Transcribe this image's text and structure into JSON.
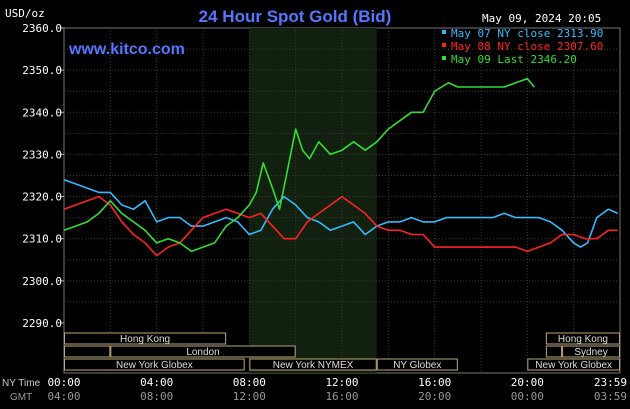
{
  "header": {
    "title": "24 Hour Spot Gold (Bid)",
    "datetime": "May 09, 2024 20:05",
    "y_unit": "USD/oz",
    "site": "www.kitco.com"
  },
  "legend": [
    {
      "text": "May 07 NY close 2313.90",
      "color": "#33bbff"
    },
    {
      "text": "May 08 NY close 2307.60",
      "color": "#ff2222"
    },
    {
      "text": "May 09 Last 2346.20",
      "color": "#33dd33"
    }
  ],
  "market_sessions": {
    "rows": [
      [
        {
          "label": "Hong Kong",
          "start": 0.0,
          "end": 7.0
        },
        {
          "label": "Hong Kong",
          "start": 20.8,
          "end": 24.0
        }
      ],
      [
        {
          "label": "",
          "start": 0.0,
          "end": 2.0
        },
        {
          "label": "London",
          "start": 2.0,
          "end": 10.0
        },
        {
          "label": "",
          "start": 20.8,
          "end": 21.5
        },
        {
          "label": "Sydney",
          "start": 21.5,
          "end": 24.0
        }
      ],
      [
        {
          "label": "New York Globex",
          "start": 0.0,
          "end": 7.8
        },
        {
          "label": "New York NYMEX",
          "start": 8.0,
          "end": 13.5
        },
        {
          "label": "NY Globex",
          "start": 13.5,
          "end": 17.0
        },
        {
          "label": "New York Globex",
          "start": 20.0,
          "end": 24.0
        }
      ]
    ]
  },
  "time_axis": {
    "row1_label": "NY Time",
    "row2_label": "GMT",
    "ny_ticks": [
      "00:00",
      "04:00",
      "08:00",
      "12:00",
      "16:00",
      "20:00",
      "23:59"
    ],
    "gmt_ticks": [
      "04:00",
      "08:00",
      "12:00",
      "16:00",
      "20:00",
      "00:00",
      "03:59"
    ]
  },
  "chart_data": {
    "type": "line",
    "title": "24 Hour Spot Gold (Bid)",
    "ylabel": "USD/oz",
    "xlabel": "NY Time",
    "xlim": [
      0,
      24
    ],
    "ylim": [
      2290,
      2360
    ],
    "yticks": [
      2360,
      2350,
      2340,
      2330,
      2320,
      2310,
      2300,
      2290
    ],
    "ytick_labels": [
      "2360.0",
      "2350.0",
      "2340.0",
      "2330.0",
      "2320.0",
      "2310.0",
      "2300.0",
      "2290.0"
    ],
    "grid": true,
    "legend_position": "top-right",
    "shaded_region_hours": [
      8.0,
      13.5
    ],
    "series": [
      {
        "name": "May 07 NY close 2313.90",
        "color": "#33bbff",
        "x": [
          0,
          0.5,
          1.0,
          1.5,
          2.0,
          2.5,
          3.0,
          3.5,
          4.0,
          4.5,
          5.0,
          5.5,
          6.0,
          6.5,
          7.0,
          7.5,
          8.0,
          8.5,
          9.0,
          9.5,
          10.0,
          10.5,
          11.0,
          11.5,
          12.0,
          12.5,
          13.0,
          13.5,
          14.0,
          14.5,
          15.0,
          15.5,
          16.0,
          16.5,
          17.0,
          17.5,
          18.0,
          18.5,
          19.0,
          19.5,
          20.0,
          20.5,
          21.0,
          21.5,
          22.0,
          22.3,
          22.6,
          23.0,
          23.5,
          23.9
        ],
        "values": [
          2324,
          2323,
          2322,
          2321,
          2321,
          2318,
          2317,
          2319,
          2314,
          2315,
          2315,
          2313,
          2313,
          2314,
          2315,
          2314,
          2311,
          2312,
          2317,
          2320,
          2318,
          2315,
          2314,
          2312,
          2313,
          2314,
          2311,
          2313,
          2314,
          2314,
          2315,
          2314,
          2314,
          2315,
          2315,
          2315,
          2315,
          2315,
          2316,
          2315,
          2315,
          2315,
          2314,
          2312,
          2309,
          2308,
          2309,
          2315,
          2317,
          2316
        ]
      },
      {
        "name": "May 08 NY close 2307.60",
        "color": "#ff2222",
        "x": [
          0,
          0.5,
          1.0,
          1.5,
          2.0,
          2.5,
          3.0,
          3.5,
          4.0,
          4.5,
          5.0,
          5.5,
          6.0,
          6.5,
          7.0,
          7.5,
          8.0,
          8.5,
          9.0,
          9.5,
          10.0,
          10.5,
          11.0,
          11.5,
          12.0,
          12.5,
          13.0,
          13.5,
          14.0,
          14.5,
          15.0,
          15.5,
          16.0,
          16.5,
          17.0,
          17.5,
          18.0,
          18.5,
          19.0,
          19.5,
          20.0,
          20.5,
          21.0,
          21.5,
          22.0,
          22.5,
          23.0,
          23.5,
          23.9
        ],
        "values": [
          2317,
          2318,
          2319,
          2320,
          2318,
          2314,
          2311,
          2309,
          2306,
          2308,
          2309,
          2312,
          2315,
          2316,
          2317,
          2316,
          2315,
          2316,
          2313,
          2310,
          2310,
          2314,
          2316,
          2318,
          2320,
          2318,
          2316,
          2313,
          2312,
          2312,
          2311,
          2311,
          2308,
          2308,
          2308,
          2308,
          2308,
          2308,
          2308,
          2308,
          2307,
          2308,
          2309,
          2311,
          2311,
          2310,
          2310,
          2312,
          2312
        ]
      },
      {
        "name": "May 09 Last 2346.20",
        "color": "#33dd33",
        "x": [
          0,
          0.5,
          1.0,
          1.5,
          2.0,
          2.5,
          3.0,
          3.5,
          4.0,
          4.5,
          5.0,
          5.5,
          6.0,
          6.5,
          7.0,
          7.5,
          8.0,
          8.3,
          8.6,
          9.0,
          9.3,
          9.6,
          10.0,
          10.3,
          10.6,
          11.0,
          11.5,
          12.0,
          12.5,
          13.0,
          13.5,
          14.0,
          14.5,
          15.0,
          15.5,
          16.0,
          16.3,
          16.6,
          17.0,
          17.5,
          18.0,
          18.5,
          19.0,
          19.5,
          20.0,
          20.3
        ],
        "values": [
          2312,
          2313,
          2314,
          2316,
          2319,
          2316,
          2314,
          2312,
          2309,
          2310,
          2309,
          2307,
          2308,
          2309,
          2313,
          2315,
          2318,
          2321,
          2328,
          2322,
          2317,
          2325,
          2336,
          2331,
          2329,
          2333,
          2330,
          2331,
          2333,
          2331,
          2333,
          2336,
          2338,
          2340,
          2340,
          2345,
          2346,
          2347,
          2346,
          2346,
          2346,
          2346,
          2346,
          2347,
          2348,
          2346
        ]
      }
    ]
  }
}
